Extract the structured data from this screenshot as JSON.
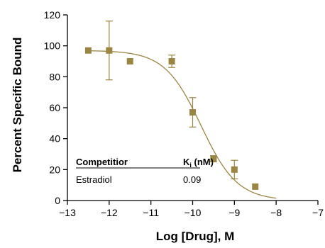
{
  "chart_data": {
    "type": "scatter",
    "xlabel": "Log [Drug], M",
    "ylabel": "Percent Specific Bound",
    "xlim": [
      -13,
      -7
    ],
    "ylim": [
      0,
      120
    ],
    "xticks": [
      -13,
      -12,
      -11,
      -10,
      -9,
      -8,
      -7
    ],
    "yticks": [
      0,
      20,
      40,
      60,
      80,
      100,
      120
    ],
    "grid": false,
    "colors": {
      "marker": "#9b8542",
      "curve": "#9b8542",
      "axis": "#000000"
    },
    "points": [
      {
        "x": -12.5,
        "y": 97
      },
      {
        "x": -12.0,
        "y": 97,
        "err": 19
      },
      {
        "x": -11.5,
        "y": 90
      },
      {
        "x": -10.5,
        "y": 90,
        "err": 4
      },
      {
        "x": -10.0,
        "y": 57,
        "err": 9.5
      },
      {
        "x": -9.5,
        "y": 27,
        "err": 2
      },
      {
        "x": -9.0,
        "y": 20,
        "err": 6
      },
      {
        "x": -8.5,
        "y": 9
      }
    ],
    "fit": {
      "model": "one-site competition",
      "top": 97,
      "bottom": 0,
      "logIC50": -9.8,
      "x_range": [
        -12.5,
        -8
      ]
    },
    "inset_table": {
      "headers": [
        "Competitior",
        "Ki (nM)"
      ],
      "header_main": "K",
      "header_sub": "i",
      "header_unit": " (nM)",
      "rows": [
        [
          "Estradiol",
          "0.09"
        ]
      ]
    }
  }
}
